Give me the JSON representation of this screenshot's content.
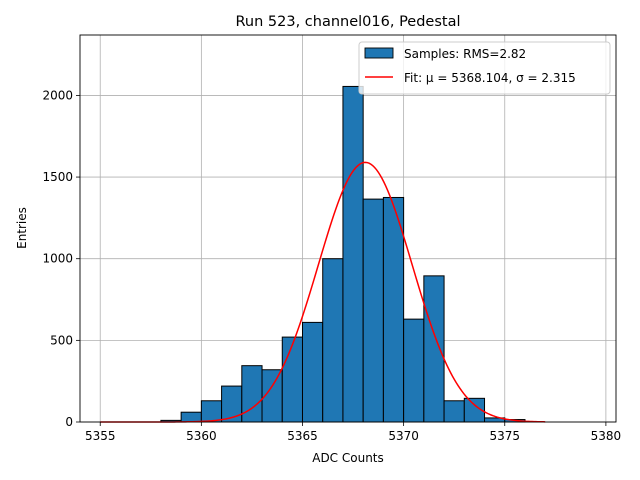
{
  "chart_data": {
    "type": "bar",
    "title": "Run 523, channel016, Pedestal",
    "xlabel": "ADC Counts",
    "ylabel": "Entries",
    "xlim": [
      5354,
      5380.5
    ],
    "ylim": [
      0,
      2370
    ],
    "xticks": [
      5355,
      5360,
      5365,
      5370,
      5375,
      5380
    ],
    "yticks": [
      0,
      500,
      1000,
      1500,
      2000
    ],
    "grid": true,
    "legend_position": "top-right",
    "series": [
      {
        "name": "Samples: RMS=2.82",
        "kind": "histogram",
        "color": "#1f77b4",
        "edgecolor": "#000000",
        "bin_edges": [
          5358,
          5359,
          5360,
          5361,
          5362,
          5363,
          5364,
          5365,
          5366,
          5367,
          5368,
          5369,
          5370,
          5371,
          5372,
          5373,
          5374,
          5375,
          5376
        ],
        "counts": [
          10,
          60,
          130,
          220,
          345,
          320,
          520,
          610,
          1000,
          2055,
          1365,
          1375,
          630,
          895,
          130,
          145,
          25,
          15
        ]
      },
      {
        "name": "Fit: μ = 5368.104, σ = 2.315",
        "kind": "gaussian-fit",
        "color": "#ff0000",
        "mu": 5368.104,
        "sigma": 2.315,
        "amplitude": 1590,
        "x_range": [
          5355,
          5377
        ]
      }
    ]
  }
}
